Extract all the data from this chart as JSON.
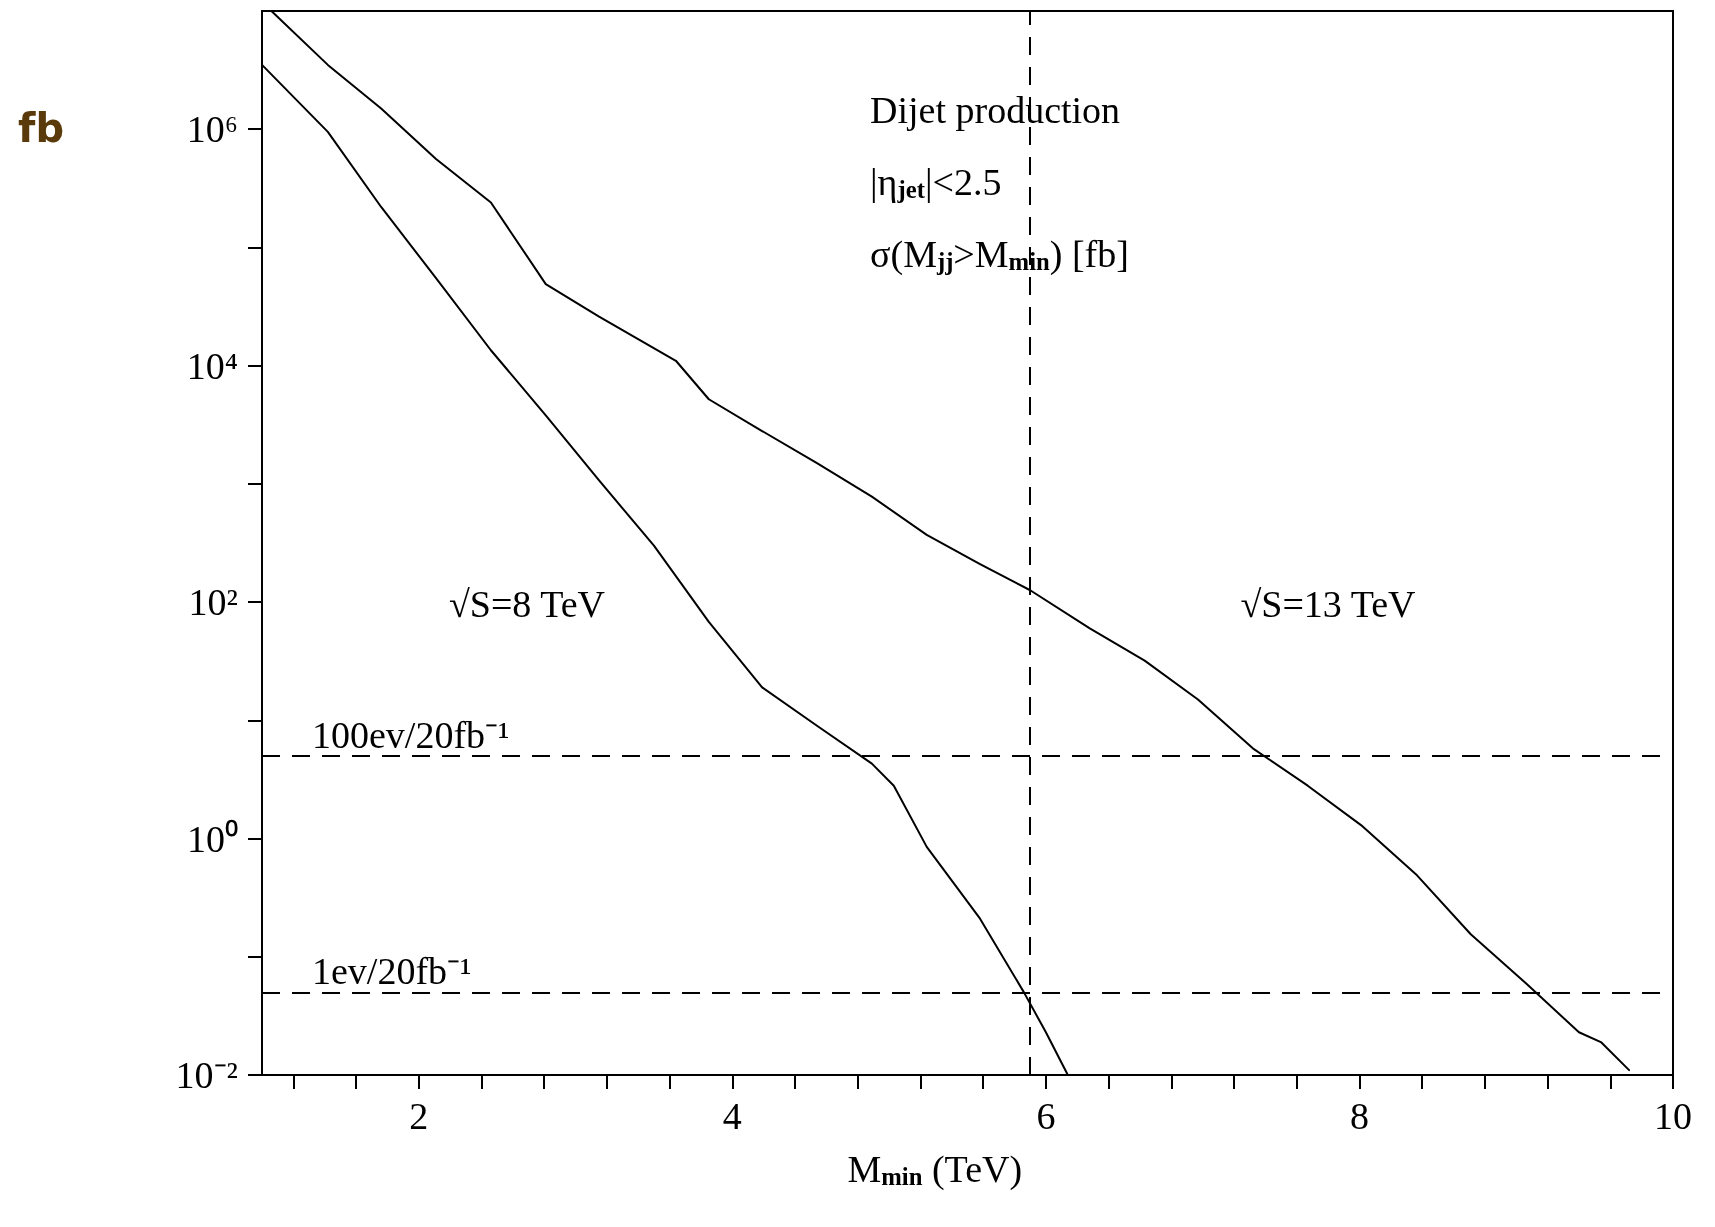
{
  "chart_data": {
    "type": "line",
    "xlabel": "M$_{min}$ (TeV)",
    "ylabel": "fb",
    "log": "y",
    "grid": false,
    "marker": "none",
    "line_style": "solid",
    "xlim": [
      1,
      10
    ],
    "ylim": [
      0.01,
      10000000
    ],
    "xticks": [
      {
        "value": 1.2,
        "label": null
      },
      {
        "value": 1.6,
        "label": null
      },
      2,
      {
        "value": 2.4,
        "label": null
      },
      {
        "value": 2.8,
        "label": null
      },
      {
        "value": 3.2,
        "label": null
      },
      {
        "value": 3.6,
        "label": null
      },
      4,
      {
        "value": 4.4,
        "label": null
      },
      {
        "value": 4.8,
        "label": null
      },
      {
        "value": 5.2,
        "label": null
      },
      {
        "value": 5.6,
        "label": null
      },
      6,
      {
        "value": 6.4,
        "label": null
      },
      {
        "value": 6.8,
        "label": null
      },
      {
        "value": 7.2,
        "label": null
      },
      {
        "value": 7.6,
        "label": null
      },
      8,
      {
        "value": 8.4,
        "label": null
      },
      {
        "value": 8.8,
        "label": null
      },
      {
        "value": 9.2,
        "label": null
      },
      {
        "value": 9.6,
        "label": null
      },
      10
    ],
    "yticks": [
      {
        "value": 0.01,
        "label": "10⁻²"
      },
      {
        "value": 0.1,
        "label": null
      },
      {
        "value": 1,
        "label": "10⁰"
      },
      {
        "value": 10,
        "label": null
      },
      {
        "value": 100,
        "label": "10²"
      },
      {
        "value": 1000,
        "label": null
      },
      {
        "value": 10000,
        "label": "10⁴"
      },
      {
        "value": 100000,
        "label": null
      },
      {
        "value": 1000000,
        "label": "10⁶"
      }
    ],
    "series": [
      {
        "color": "#000000",
        "x": [
          1.06,
          1.42,
          1.76,
          2.11,
          2.46,
          2.81,
          3.15,
          3.64,
          3.85,
          4.19,
          4.54,
          4.89,
          5.24,
          5.58,
          5.9,
          6.28,
          6.63,
          6.97,
          7.32,
          7.67,
          8.01,
          8.36,
          8.71,
          9.06,
          9.4,
          9.54,
          9.72
        ],
        "values": [
          10000000,
          3500000,
          1500000,
          560000,
          240000,
          49000,
          26000,
          11000,
          5200,
          2800,
          1500,
          780,
          370,
          210,
          126,
          60,
          32,
          15,
          5.8,
          2.8,
          1.3,
          0.5,
          0.155,
          0.06,
          0.023,
          0.019,
          0.011
        ]
      },
      {
        "color": "#000000",
        "x": [
          1.0,
          1.42,
          1.76,
          2.11,
          2.46,
          2.81,
          3.15,
          3.5,
          3.85,
          4.19,
          4.54,
          4.89,
          5.03,
          5.24,
          5.58,
          5.86,
          6.0,
          6.14
        ],
        "values": [
          3500000,
          950000,
          220000,
          55000,
          13500,
          3800,
          1070,
          300,
          68,
          19,
          9,
          4.3,
          2.8,
          0.85,
          0.21,
          0.05,
          0.023,
          0.01
        ]
      }
    ],
    "ref_lines": [
      {
        "axis": "y",
        "value": 5,
        "label": "100ev/20fb⁻¹",
        "line_style": "dashed",
        "color": "#000000"
      },
      {
        "axis": "y",
        "value": 0.05,
        "label": "1ev/20fb⁻¹",
        "line_style": "dashed",
        "color": "#000000"
      },
      {
        "axis": "x",
        "value": 5.9,
        "line_style": "dashed",
        "color": "#000000"
      }
    ],
    "annotations": [
      "Dijet production",
      "|η$_{jet}$|<2.5",
      "σ(M$_{jj}$>M$_{min}$) [fb]",
      "√S=8 TeV",
      "√S=13 TeV"
    ]
  }
}
